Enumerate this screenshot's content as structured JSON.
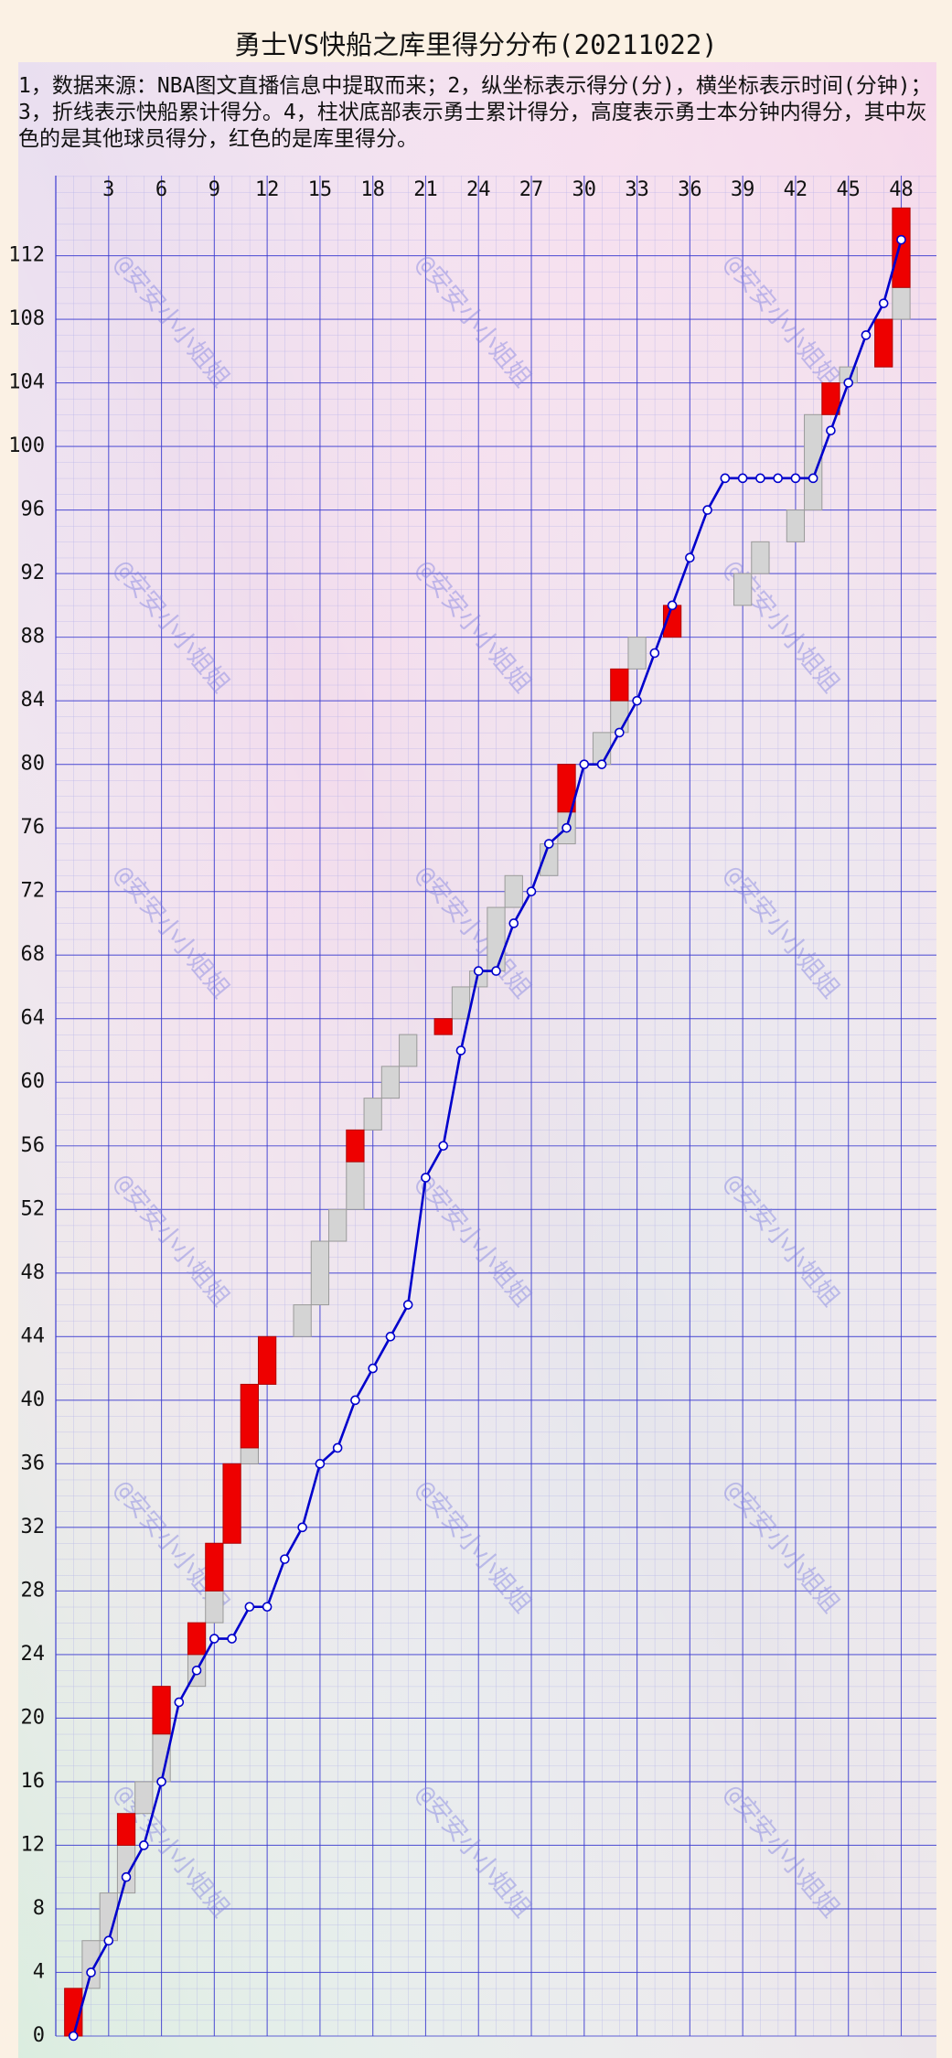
{
  "chart_data": {
    "type": "bar",
    "stacked": true,
    "title": "勇士VS快船之库里得分分布(20211022)",
    "subtitle": "1，数据来源：NBA图文直播信息中提取而来；2，纵坐标表示得分(分)，横坐标表示时间(分钟)；3，折线表示快船累计得分。4，柱状底部表示勇士累计得分，高度表示勇士本分钟内得分，其中灰色的是其他球员得分，红色的是库里得分。",
    "watermark": "@安安小小姐姐",
    "x": [
      1,
      2,
      3,
      4,
      5,
      6,
      7,
      8,
      9,
      10,
      11,
      12,
      13,
      14,
      15,
      16,
      17,
      18,
      19,
      20,
      21,
      22,
      23,
      24,
      25,
      26,
      27,
      28,
      29,
      30,
      31,
      32,
      33,
      34,
      35,
      36,
      37,
      38,
      39,
      40,
      41,
      42,
      43,
      44,
      45,
      46,
      47,
      48
    ],
    "series": [
      {
        "type": "bar",
        "color": "#d4d4d4",
        "values": [
          0,
          3,
          3,
          3,
          2,
          3,
          0,
          2,
          2,
          0,
          1,
          0,
          0,
          2,
          4,
          2,
          3,
          2,
          2,
          2,
          0,
          0,
          2,
          1,
          4,
          2,
          0,
          2,
          2,
          0,
          2,
          2,
          2,
          0,
          0,
          0,
          0,
          0,
          2,
          2,
          0,
          2,
          6,
          0,
          1,
          0,
          0,
          2
        ]
      },
      {
        "type": "bar",
        "color": "#ee0000",
        "values": [
          3,
          0,
          0,
          2,
          0,
          3,
          0,
          2,
          3,
          5,
          4,
          3,
          0,
          0,
          0,
          0,
          2,
          0,
          0,
          0,
          0,
          1,
          0,
          0,
          0,
          0,
          0,
          0,
          3,
          0,
          0,
          2,
          0,
          0,
          2,
          0,
          0,
          0,
          0,
          0,
          0,
          0,
          0,
          2,
          0,
          0,
          3,
          5
        ]
      },
      {
        "type": "line",
        "color": "#0000cc",
        "values": [
          0,
          4,
          6,
          10,
          12,
          16,
          21,
          23,
          25,
          25,
          27,
          27,
          30,
          32,
          36,
          37,
          40,
          42,
          44,
          46,
          54,
          56,
          62,
          67,
          67,
          70,
          72,
          75,
          76,
          80,
          80,
          82,
          84,
          87,
          90,
          93,
          96,
          98,
          98,
          98,
          98,
          98,
          98,
          101,
          104,
          107,
          109,
          113
        ]
      }
    ],
    "xlim": [
      0,
      50
    ],
    "xticks": [
      3,
      6,
      9,
      12,
      15,
      18,
      21,
      24,
      27,
      30,
      33,
      36,
      39,
      42,
      45,
      48
    ],
    "ylim": [
      0,
      116
    ],
    "yticks": [
      0,
      4,
      8,
      12,
      16,
      20,
      24,
      28,
      32,
      36,
      40,
      44,
      48,
      52,
      56,
      60,
      64,
      68,
      72,
      76,
      80,
      84,
      88,
      92,
      96,
      100,
      104,
      108,
      112
    ],
    "grid": true,
    "minor_grid": true
  }
}
